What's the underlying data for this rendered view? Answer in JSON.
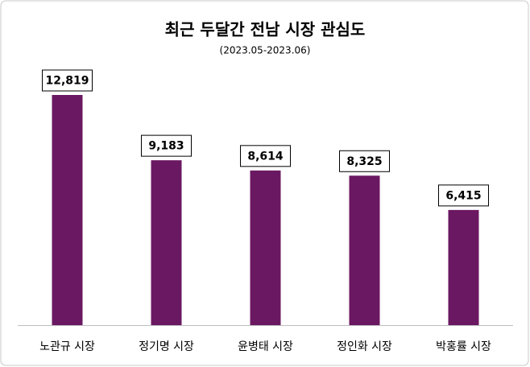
{
  "chart_data": {
    "type": "bar",
    "title": "최근 두달간 전남 시장 관심도",
    "subtitle": "(2023.05-2023.06)",
    "categories": [
      "노관규 시장",
      "정기명 시장",
      "윤병태 시장",
      "정인화 시장",
      "박홍률 시장"
    ],
    "values": [
      12819,
      9183,
      8614,
      8325,
      6415
    ],
    "value_labels": [
      "12,819",
      "9,183",
      "8,614",
      "8,325",
      "6,415"
    ],
    "color": "#6b1862"
  }
}
